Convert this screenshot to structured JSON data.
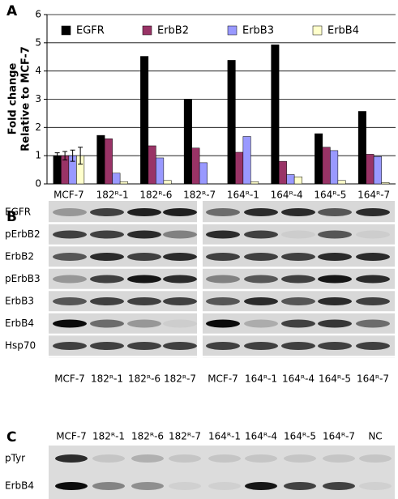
{
  "chart_data": {
    "type": "bar",
    "panel_label": "A",
    "ylabel": [
      "Fold change",
      "Relative to MCF-7"
    ],
    "categories": [
      "MCF-7",
      "182ᴿ-1",
      "182ᴿ-6",
      "182ᴿ-7",
      "164ᴿ-1",
      "164ᴿ-4",
      "164ᴿ-5",
      "164ᴿ-7"
    ],
    "series": [
      {
        "name": "EGFR",
        "color": "#000000",
        "values": [
          1,
          1.72,
          4.52,
          3.0,
          4.38,
          4.93,
          1.78,
          2.57
        ],
        "errors": [
          0.1,
          null,
          null,
          null,
          null,
          null,
          null,
          null
        ]
      },
      {
        "name": "ErbB2",
        "color": "#993366",
        "values": [
          1,
          1.6,
          1.35,
          1.27,
          1.12,
          0.8,
          1.3,
          1.05
        ],
        "errors": [
          0.15,
          null,
          null,
          null,
          null,
          null,
          null,
          null
        ]
      },
      {
        "name": "ErbB3",
        "color": "#9999ff",
        "values": [
          1,
          0.38,
          0.92,
          0.75,
          1.68,
          0.33,
          1.18,
          0.97
        ],
        "errors": [
          0.2,
          null,
          null,
          null,
          null,
          null,
          null,
          null
        ]
      },
      {
        "name": "ErbB4",
        "color": "#ffffcc",
        "values": [
          1,
          0.08,
          0.12,
          0,
          0.08,
          0.25,
          0.12,
          0.05
        ],
        "errors": [
          0.3,
          null,
          null,
          null,
          null,
          null,
          null,
          null
        ]
      }
    ],
    "ylim": [
      0,
      6
    ],
    "yticks": [
      0,
      1,
      2,
      3,
      4,
      5,
      6
    ],
    "grid": true,
    "legend": "top"
  },
  "blots": [
    {
      "panel_label": "B",
      "rows": [
        "EGFR",
        "pErbB2",
        "ErbB2",
        "pErbB3",
        "ErbB3",
        "ErbB4",
        "Hsp70"
      ],
      "lanes": [
        "MCF-7",
        "182ᴿ-1",
        "182ᴿ-6",
        "182ᴿ-7",
        "MCF-7",
        "164ᴿ-1",
        "164ᴿ-4",
        "164ᴿ-5",
        "164ᴿ-7"
      ]
    },
    {
      "panel_label": "C",
      "rows": [
        "pTyr",
        "ErbB4"
      ],
      "lanes": [
        "MCF-7",
        "182ᴿ-1",
        "182ᴿ-6",
        "182ᴿ-7",
        "164ᴿ-1",
        "164ᴿ-4",
        "164ᴿ-5",
        "164ᴿ-7",
        "NC"
      ]
    }
  ]
}
